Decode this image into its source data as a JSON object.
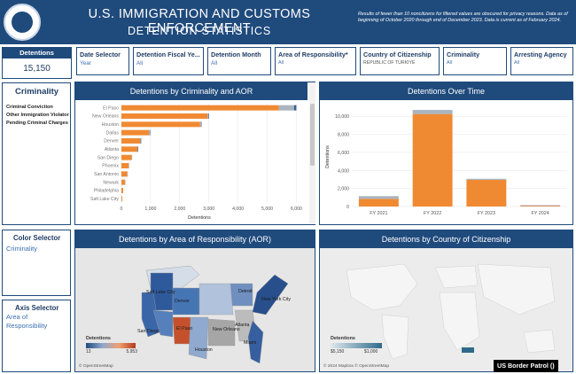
{
  "header": {
    "title_line1": "U.S. IMMIGRATION AND CUSTOMS ENFORCEMENT",
    "title_line2": "DETENTION STATISTICS",
    "disclaimer": "Results of fewer than 10 noncitizens for filtered values are obscured for privacy reasons. Data as of beginning of October 2020 through end of December 2023. Data is current as of February 2024."
  },
  "detentions_card": {
    "label": "Detentions",
    "value": "15,150"
  },
  "filters": [
    {
      "label": "Date Selector",
      "value": "Year"
    },
    {
      "label": "Detention Fiscal Ye...",
      "value": "All"
    },
    {
      "label": "Detention Month",
      "value": "All"
    },
    {
      "label": "Area of Responsibility*",
      "value": "All"
    },
    {
      "label": "Country of Citizenship",
      "value": "REPUBLIC OF TÜRKIYE"
    },
    {
      "label": "Criminality",
      "value": "All"
    },
    {
      "label": "Arresting Agency",
      "value": "All"
    }
  ],
  "criminality_panel": {
    "title": "Criminality",
    "items": [
      "Criminal Conviction",
      "Other Immigration Violator",
      "Pending Criminal Charges"
    ]
  },
  "color_selector": {
    "title": "Color Selector",
    "value": "Criminality"
  },
  "axis_selector": {
    "title": "Axis Selector",
    "value": "Area of Responsibility"
  },
  "panels": {
    "aor_bar_title": "Detentions by Criminality and AOR",
    "time_title": "Detentions Over Time",
    "aor_map_title": "Detentions by Area of Responsibility (AOR)",
    "country_map_title": "Detentions by Country of Citizenship"
  },
  "map_labels": {
    "salt_lake": "Salt Lake City",
    "denver": "Denver",
    "san_diego": "San Diego",
    "el_paso": "El Paso",
    "new_orleans": "New Orleans",
    "atlanta": "Atlanta",
    "miami": "Miami",
    "houston": "Houston",
    "new_york": "New York City",
    "detroit": "Detroit"
  },
  "aor_legend": {
    "title": "Detentions",
    "min": "13",
    "max": "5,953"
  },
  "country_legend": {
    "title": "Detentions",
    "min": "$5,150",
    "max": "$1,000"
  },
  "credits": {
    "aor": "© OpenStreetMap",
    "country": "© 2024 Mapbox © OpenStreetMap"
  },
  "watermark": "US Border Patrol ()",
  "colors": {
    "navy": "#1f4a7c",
    "orange": "#f08a32",
    "gray_segment": "#a9b4bf",
    "dark_segment": "#3b5d8f"
  },
  "chart_data": [
    {
      "type": "bar",
      "orientation": "horizontal",
      "title": "Detentions by Criminality and AOR",
      "xlabel": "Detentions",
      "categories": [
        "El Paso",
        "New Orleans",
        "Houston",
        "Dallas",
        "Denver",
        "Atlanta",
        "San Diego",
        "Phoenix",
        "San Antonio",
        "Newark",
        "Philadelphia",
        "Salt Lake City"
      ],
      "series": [
        {
          "values": [
            5400,
            2950,
            2700,
            950,
            650,
            550,
            350,
            250,
            200,
            120,
            60,
            30
          ]
        },
        {
          "values": [
            520,
            40,
            30,
            20,
            10,
            10,
            10,
            5,
            5,
            5,
            0,
            0
          ]
        },
        {
          "values": [
            80,
            10,
            10,
            5,
            5,
            5,
            0,
            0,
            0,
            0,
            0,
            0
          ]
        }
      ],
      "xlim": [
        0,
        6200
      ],
      "ticks": [
        0,
        1000,
        2000,
        3000,
        4000,
        5000,
        6000
      ],
      "tick_labels": [
        "0",
        "1,000",
        "2,000",
        "3,000",
        "4,000",
        "5,000",
        "6,000"
      ]
    },
    {
      "type": "bar",
      "title": "Detentions Over Time",
      "ylabel": "Detentions",
      "categories": [
        "FY 2021",
        "FY 2022",
        "FY 2023",
        "FY 2024"
      ],
      "series": [
        {
          "values": [
            850,
            10250,
            2950,
            120
          ]
        },
        {
          "values": [
            300,
            450,
            120,
            30
          ]
        }
      ],
      "ylim": [
        0,
        11000
      ],
      "ticks": [
        0,
        2000,
        4000,
        6000,
        8000,
        10000
      ],
      "tick_labels": [
        "0",
        "2,000",
        "4,000",
        "6,000",
        "8,000",
        "10,000"
      ]
    }
  ]
}
